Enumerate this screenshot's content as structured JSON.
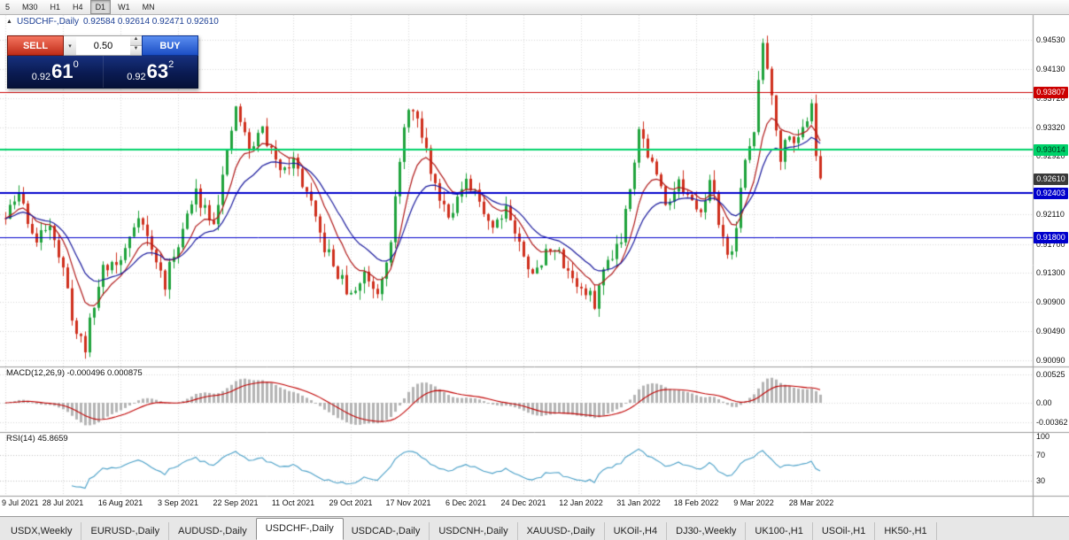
{
  "toolbar": {
    "timeframes": [
      {
        "label": "5",
        "active": false
      },
      {
        "label": "M30",
        "active": false
      },
      {
        "label": "H1",
        "active": false
      },
      {
        "label": "H4",
        "active": false
      },
      {
        "label": "D1",
        "active": true
      },
      {
        "label": "W1",
        "active": false
      },
      {
        "label": "MN",
        "active": false
      }
    ]
  },
  "icons": {
    "chart_marker": "▲",
    "chevron_down": "▾",
    "spin_up": "▲",
    "spin_down": "▼"
  },
  "chart": {
    "title": "USDCHF-,Daily",
    "ohlc": "0.92584 0.92614 0.92471 0.92610"
  },
  "trade_panel": {
    "sell_label": "SELL",
    "buy_label": "BUY",
    "volume": "0.50",
    "sell_price": {
      "prefix": "0.92",
      "big": "61",
      "sup": "0"
    },
    "buy_price": {
      "prefix": "0.92",
      "big": "63",
      "sup": "2"
    }
  },
  "price_axis": {
    "labels": [
      "0.94530",
      "0.94130",
      "0.93720",
      "0.93320",
      "0.92920",
      "0.92110",
      "0.91700",
      "0.91300",
      "0.90900",
      "0.90490",
      "0.90090"
    ],
    "boxes": [
      {
        "value": "0.93807",
        "bg": "#cc0000",
        "fg": "#ffffff"
      },
      {
        "value": "0.93014",
        "bg": "#00d26a",
        "fg": "#00331a"
      },
      {
        "value": "0.92610",
        "bg": "#3a3a3a",
        "fg": "#ffffff"
      },
      {
        "value": "0.92403",
        "bg": "#0000cc",
        "fg": "#ffffff"
      },
      {
        "value": "0.91800",
        "bg": "#0000cc",
        "fg": "#ffffff"
      }
    ]
  },
  "macd_panel": {
    "label": "MACD(12,26,9) -0.000496 0.000875",
    "axis": [
      "0.00525",
      "0.00",
      "-0.00362"
    ]
  },
  "rsi_panel": {
    "label": "RSI(14) 45.8659",
    "axis": [
      "100",
      "70",
      "30"
    ]
  },
  "date_axis": {
    "labels": [
      "9 Jul 2021",
      "28 Jul 2021",
      "16 Aug 2021",
      "3 Sep 2021",
      "22 Sep 2021",
      "11 Oct 2021",
      "29 Oct 2021",
      "17 Nov 2021",
      "6 Dec 2021",
      "24 Dec 2021",
      "12 Jan 2022",
      "31 Jan 2022",
      "18 Feb 2022",
      "9 Mar 2022",
      "28 Mar 2022"
    ]
  },
  "tabs": [
    {
      "label": "USDX,Weekly",
      "active": false
    },
    {
      "label": "EURUSD-,Daily",
      "active": false
    },
    {
      "label": "AUDUSD-,Daily",
      "active": false
    },
    {
      "label": "USDCHF-,Daily",
      "active": true
    },
    {
      "label": "USDCAD-,Daily",
      "active": false
    },
    {
      "label": "USDCNH-,Daily",
      "active": false
    },
    {
      "label": "XAUUSD-,Daily",
      "active": false
    },
    {
      "label": "UKOil-,H4",
      "active": false
    },
    {
      "label": "DJ30-,Weekly",
      "active": false
    },
    {
      "label": "UK100-,H1",
      "active": false
    },
    {
      "label": "USOil-,H1",
      "active": false
    },
    {
      "label": "HK50-,H1",
      "active": false
    }
  ],
  "chart_data": {
    "type": "candlestick",
    "symbol": "USDCHF-",
    "period": "Daily",
    "ohlc_display": {
      "open": "0.92584",
      "high": "0.92614",
      "low": "0.92471",
      "close": "0.92610"
    },
    "last_close": 0.9261,
    "candle_count": 185,
    "ticks_every": 13,
    "price_axis_range": [
      0.9009,
      0.9453
    ],
    "levels": [
      {
        "price": 0.93807,
        "color": "#cc0000",
        "width": 1
      },
      {
        "price": 0.93014,
        "color": "#00d26a",
        "width": 2
      },
      {
        "price": 0.92403,
        "color": "#0000cc",
        "width": 2
      },
      {
        "price": 0.918,
        "color": "#0000cc",
        "width": 1
      }
    ],
    "price_path": [
      [
        0,
        0.9205
      ],
      [
        3,
        0.924
      ],
      [
        7,
        0.917
      ],
      [
        10,
        0.9205
      ],
      [
        13,
        0.913
      ],
      [
        16,
        0.9045
      ],
      [
        18,
        0.903
      ],
      [
        22,
        0.914
      ],
      [
        26,
        0.9145
      ],
      [
        30,
        0.9215
      ],
      [
        33,
        0.916
      ],
      [
        36,
        0.9115
      ],
      [
        39,
        0.9175
      ],
      [
        43,
        0.924
      ],
      [
        47,
        0.9205
      ],
      [
        50,
        0.929
      ],
      [
        52,
        0.936
      ],
      [
        55,
        0.93
      ],
      [
        58,
        0.933
      ],
      [
        61,
        0.928
      ],
      [
        65,
        0.9285
      ],
      [
        68,
        0.924
      ],
      [
        71,
        0.918
      ],
      [
        74,
        0.914
      ],
      [
        78,
        0.9095
      ],
      [
        81,
        0.913
      ],
      [
        84,
        0.9105
      ],
      [
        87,
        0.918
      ],
      [
        89,
        0.928
      ],
      [
        91,
        0.9365
      ],
      [
        94,
        0.932
      ],
      [
        97,
        0.925
      ],
      [
        100,
        0.9215
      ],
      [
        104,
        0.925
      ],
      [
        107,
        0.923
      ],
      [
        110,
        0.9195
      ],
      [
        113,
        0.9225
      ],
      [
        117,
        0.915
      ],
      [
        120,
        0.913
      ],
      [
        123,
        0.917
      ],
      [
        126,
        0.9145
      ],
      [
        130,
        0.9105
      ],
      [
        133,
        0.909
      ],
      [
        136,
        0.915
      ],
      [
        139,
        0.918
      ],
      [
        143,
        0.933
      ],
      [
        146,
        0.928
      ],
      [
        149,
        0.923
      ],
      [
        152,
        0.9255
      ],
      [
        156,
        0.921
      ],
      [
        159,
        0.9255
      ],
      [
        162,
        0.918
      ],
      [
        164,
        0.915
      ],
      [
        166,
        0.925
      ],
      [
        169,
        0.933
      ],
      [
        171,
        0.945
      ],
      [
        173,
        0.938
      ],
      [
        175,
        0.929
      ],
      [
        177,
        0.933
      ],
      [
        179,
        0.931
      ],
      [
        182,
        0.937
      ],
      [
        183,
        0.93
      ],
      [
        184,
        0.9261
      ]
    ],
    "colors": {
      "bull": "#1fa33c",
      "bear": "#cf2f1d",
      "ma_fast": "#b01818",
      "ma_slow": "#1b1b9e",
      "macd_hist": "#b4b4b4",
      "macd_signal": "#c00000",
      "rsi": "#4aa0c8",
      "grid": "#d9d9d9"
    },
    "macd_values": {
      "main": -0.000496,
      "signal": 0.000875
    },
    "rsi_value": 45.8659
  }
}
